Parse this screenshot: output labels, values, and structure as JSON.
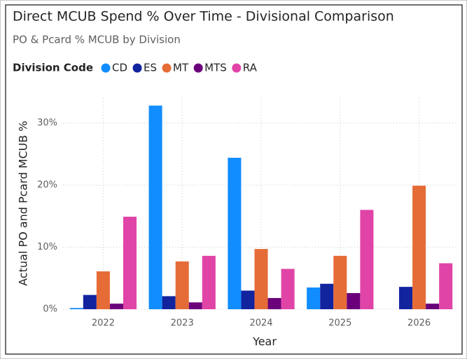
{
  "chart_data": {
    "type": "bar",
    "title": "Direct MCUB Spend % Over Time - Divisional Comparison",
    "subtitle": "PO & Pcard % MCUB by Division",
    "legend_title": "Division Code",
    "x_label": "Year",
    "y_label": "Actual PO and Pcard MCUB %",
    "categories": [
      "2022",
      "2023",
      "2024",
      "2025",
      "2026"
    ],
    "series": [
      {
        "name": "CD",
        "color": "#118DFF",
        "values": [
          0.2,
          32.8,
          24.4,
          3.5,
          null
        ]
      },
      {
        "name": "ES",
        "color": "#12239E",
        "values": [
          2.3,
          2.1,
          3.0,
          4.1,
          3.6
        ]
      },
      {
        "name": "MT",
        "color": "#E66C37",
        "values": [
          6.1,
          7.7,
          9.7,
          8.6,
          19.9
        ]
      },
      {
        "name": "MTS",
        "color": "#6B007B",
        "values": [
          0.9,
          1.1,
          1.8,
          2.6,
          0.9
        ]
      },
      {
        "name": "RA",
        "color": "#E044A7",
        "values": [
          14.9,
          8.6,
          6.5,
          16.0,
          7.4
        ]
      }
    ],
    "ylim": [
      0,
      34
    ],
    "yticks": [
      {
        "value": 0,
        "label": "0%"
      },
      {
        "value": 10,
        "label": "10%"
      },
      {
        "value": 20,
        "label": "20%"
      },
      {
        "value": 30,
        "label": "30%"
      }
    ],
    "grid": true,
    "legend": "top-left"
  }
}
